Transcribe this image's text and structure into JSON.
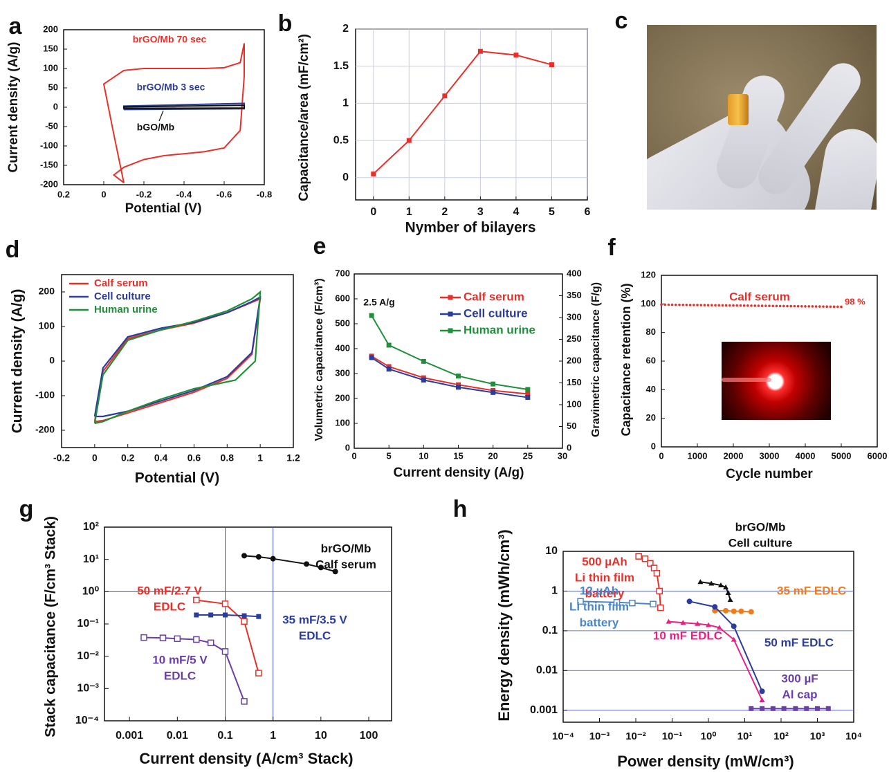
{
  "panels": {
    "a": {
      "label": "a",
      "chart_data": {
        "type": "line",
        "xlabel": "Potential (V)",
        "ylabel": "Current density (A/g)",
        "xlim": [
          0.2,
          -0.8
        ],
        "ylim": [
          -200,
          200
        ],
        "xticks": [
          "0.2",
          "0",
          "-0.2",
          "-0.4",
          "-0.6",
          "-0.8"
        ],
        "yticks": [
          "200",
          "150",
          "100",
          "50",
          "0",
          "-50",
          "-100",
          "-150",
          "-200"
        ],
        "series": [
          {
            "name": "brGO/Mb 70 sec",
            "color": "#e8302a",
            "x": [
              -0.1,
              -0.05,
              0.0,
              -0.1,
              -0.2,
              -0.3,
              -0.4,
              -0.5,
              -0.6,
              -0.68,
              -0.7,
              -0.7,
              -0.68,
              -0.6,
              -0.5,
              -0.4,
              -0.3,
              -0.2,
              -0.1,
              -0.05,
              -0.1
            ],
            "y": [
              -195,
              -70,
              60,
              95,
              100,
              100,
              100,
              100,
              102,
              115,
              165,
              80,
              -60,
              -105,
              -115,
              -120,
              -125,
              -135,
              -155,
              -175,
              -195
            ]
          },
          {
            "name": "brGO/Mb 3 sec",
            "color": "#2a3c9c",
            "x": [
              -0.1,
              -0.7,
              -0.7,
              -0.1,
              -0.1
            ],
            "y": [
              -6,
              -4,
              10,
              3,
              -6
            ]
          },
          {
            "name": "bGO/Mb",
            "color": "#111111",
            "x": [
              -0.1,
              -0.7,
              -0.7,
              -0.1,
              -0.1
            ],
            "y": [
              -3,
              -2,
              5,
              1,
              -3
            ]
          }
        ]
      }
    },
    "b": {
      "label": "b",
      "chart_data": {
        "type": "line",
        "xlabel": "Nymber of bilayers",
        "ylabel": "Capacitance/area (mF/cm²)",
        "xlim": [
          -0.5,
          6
        ],
        "ylim": [
          -0.3,
          2
        ],
        "xticks": [
          "0",
          "1",
          "2",
          "3",
          "4",
          "5",
          "6"
        ],
        "yticks": [
          "0",
          "0.5",
          "1",
          "1.5",
          "2"
        ],
        "grid": true,
        "series": [
          {
            "color": "#e8302a",
            "x": [
              0,
              1,
              2,
              3,
              4,
              5
            ],
            "y": [
              0.05,
              0.5,
              1.1,
              1.7,
              1.65,
              1.52
            ]
          }
        ]
      }
    },
    "c": {
      "label": "c"
    },
    "d": {
      "label": "d",
      "chart_data": {
        "type": "line",
        "xlabel": "Potential (V)",
        "ylabel": "Current density (A/g)",
        "xlim": [
          -0.2,
          1.2
        ],
        "ylim": [
          -250,
          250
        ],
        "xticks": [
          "-0.2",
          "0",
          "0.2",
          "0.4",
          "0.6",
          "0.8",
          "1",
          "1.2"
        ],
        "yticks": [
          "200",
          "100",
          "0",
          "-100",
          "-200"
        ],
        "legend": "top-left",
        "series": [
          {
            "name": "Calf serum",
            "color": "#e8302a",
            "x": [
              0,
              0.05,
              0.2,
              0.4,
              0.6,
              0.8,
              0.95,
              1.0,
              0.95,
              0.8,
              0.6,
              0.4,
              0.2,
              0.05,
              0
            ],
            "y": [
              -175,
              -30,
              65,
              90,
              110,
              140,
              170,
              180,
              20,
              -50,
              -90,
              -120,
              -150,
              -172,
              -175
            ]
          },
          {
            "name": "Cell culture",
            "color": "#2a3c9c",
            "x": [
              0,
              0.05,
              0.2,
              0.4,
              0.6,
              0.8,
              0.95,
              1.0,
              0.95,
              0.8,
              0.6,
              0.4,
              0.2,
              0.05,
              0
            ],
            "y": [
              -160,
              -20,
              70,
              95,
              112,
              140,
              172,
              185,
              25,
              -45,
              -85,
              -115,
              -145,
              -160,
              -160
            ]
          },
          {
            "name": "Human urine",
            "color": "#1f8f3a",
            "x": [
              0,
              0.05,
              0.2,
              0.4,
              0.6,
              0.8,
              0.95,
              1.0,
              0.97,
              0.85,
              0.6,
              0.4,
              0.2,
              0.05,
              0
            ],
            "y": [
              -180,
              -40,
              60,
              90,
              115,
              145,
              180,
              200,
              0,
              -55,
              -80,
              -110,
              -145,
              -175,
              -180
            ]
          }
        ]
      }
    },
    "e": {
      "label": "e",
      "chart_data": {
        "type": "line",
        "xlabel": "Current density (A/g)",
        "ylabel": "Volumetric capacitance (F/cm³)",
        "ylabel2": "Gravimetric capacitance (F/g)",
        "xlim": [
          0,
          30
        ],
        "ylim": [
          0,
          700
        ],
        "ylim2": [
          0,
          400
        ],
        "xticks": [
          "0",
          "5",
          "10",
          "15",
          "20",
          "25",
          "30"
        ],
        "yticks": [
          "0",
          "100",
          "200",
          "300",
          "400",
          "500",
          "600",
          "700"
        ],
        "yticks2": [
          "0",
          "50",
          "100",
          "150",
          "200",
          "250",
          "300",
          "350",
          "400"
        ],
        "legend": "top-right",
        "annotation": "2.5 A/g",
        "series": [
          {
            "name": "Calf serum",
            "color": "#e8302a",
            "x": [
              2.5,
              5,
              10,
              15,
              20,
              25
            ],
            "y": [
              370,
              328,
              283,
              255,
              232,
              218
            ]
          },
          {
            "name": "Cell culture",
            "color": "#2a3c9c",
            "x": [
              2.5,
              5,
              10,
              15,
              20,
              25
            ],
            "y": [
              364,
              318,
              274,
              245,
              224,
              204
            ]
          },
          {
            "name": "Human urine",
            "color": "#1f8f3a",
            "x": [
              2.5,
              5,
              10,
              15,
              20,
              25
            ],
            "y": [
              533,
              414,
              349,
              290,
              258,
              236
            ]
          }
        ]
      }
    },
    "f": {
      "label": "f",
      "chart_data": {
        "type": "scatter",
        "xlabel": "Cycle number",
        "ylabel": "Capacitance retention (%)",
        "xlim": [
          0,
          6000
        ],
        "ylim": [
          0,
          120
        ],
        "xticks": [
          "0",
          "1000",
          "2000",
          "3000",
          "4000",
          "5000",
          "6000"
        ],
        "yticks": [
          "0",
          "20",
          "40",
          "60",
          "80",
          "100",
          "120"
        ],
        "series_label": "Calf serum",
        "end_label": "98 %",
        "series": [
          {
            "color": "#e8302a",
            "x_start": 0,
            "x_end": 5000,
            "y_start": 99.5,
            "y_end": 98
          }
        ]
      }
    },
    "g": {
      "label": "g",
      "chart_data": {
        "type": "line",
        "xscale": "log",
        "yscale": "log",
        "xlabel": "Current density (A/cm³ Stack)",
        "ylabel": "Stack capacitance (F/cm³ Stack)",
        "xlim": [
          0.0003,
          300
        ],
        "ylim": [
          0.0001,
          100
        ],
        "xticks": [
          "0.001",
          "0.01",
          "0.1",
          "1",
          "10",
          "100"
        ],
        "yticks": [
          "10²",
          "10¹",
          "10⁰",
          "10⁻¹",
          "10⁻²",
          "10⁻³",
          "10⁻⁴"
        ],
        "series": [
          {
            "name": "brGO/Mb Calf serum",
            "label1": "brGO/Mb",
            "label2": "Calf serum",
            "color": "#111111",
            "x": [
              0.25,
              0.5,
              1,
              5,
              10,
              20
            ],
            "y": [
              13,
              12,
              10.5,
              7.2,
              5.6,
              4.2
            ]
          },
          {
            "name": "50 mF/2.7 V EDLC",
            "label1": "50 mF/2.7 V",
            "label2": "EDLC",
            "color": "#e8302a",
            "x": [
              0.025,
              0.1,
              0.25,
              0.5
            ],
            "y": [
              0.55,
              0.42,
              0.12,
              0.003
            ]
          },
          {
            "name": "35 mF/3.5 V EDLC",
            "label1": "35 mF/3.5 V",
            "label2": "EDLC",
            "color": "#2a3c9c",
            "x": [
              0.025,
              0.05,
              0.1,
              0.25,
              0.5
            ],
            "y": [
              0.19,
              0.19,
              0.19,
              0.18,
              0.17
            ]
          },
          {
            "name": "10 mF/5 V EDLC",
            "label1": "10 mF/5 V",
            "label2": "EDLC",
            "color": "#6a3fa8",
            "x": [
              0.002,
              0.005,
              0.01,
              0.025,
              0.05,
              0.1,
              0.25
            ],
            "y": [
              0.038,
              0.037,
              0.035,
              0.033,
              0.026,
              0.014,
              0.0004
            ]
          }
        ]
      }
    },
    "h": {
      "label": "h",
      "chart_data": {
        "type": "line",
        "xscale": "log",
        "yscale": "log",
        "xlabel": "Power density (mW/cm³)",
        "ylabel": "Energy density (mWh/cm³)",
        "xlim": [
          0.0001,
          10000
        ],
        "ylim": [
          0.0005,
          10
        ],
        "xticks": [
          "10⁻⁴",
          "10⁻³",
          "10⁻²",
          "10⁻¹",
          "10⁰",
          "10¹",
          "10²",
          "10³",
          "10⁴"
        ],
        "yticks": [
          "10",
          "1",
          "0.1",
          "0.01",
          "0.001"
        ],
        "series": [
          {
            "name": "500 µAh Li thin film battery",
            "label1": "500 µAh",
            "label2": "Li thin film",
            "label3": "battery",
            "color": "#e8302a",
            "x": [
              0.012,
              0.018,
              0.025,
              0.032,
              0.038,
              0.045,
              0.048
            ],
            "y": [
              7.5,
              6.5,
              5,
              3.8,
              2.8,
              1,
              0.38
            ]
          },
          {
            "name": "brGO/Mb Cell culture",
            "label1": "brGO/Mb",
            "label2": "Cell culture",
            "color": "#111111",
            "x": [
              0.6,
              1.2,
              2.2,
              3,
              3.5,
              4
            ],
            "y": [
              1.7,
              1.55,
              1.4,
              1.25,
              0.9,
              0.6
            ]
          },
          {
            "name": "12 µAh Li thin film battery",
            "label1": "12 µAh",
            "label2": "Li thin film",
            "label3": "battery",
            "color": "#4a86c8",
            "x": [
              0.0003,
              0.003,
              0.008,
              0.03
            ],
            "y": [
              0.55,
              0.52,
              0.5,
              0.47
            ]
          },
          {
            "name": "35 mF EDLC",
            "color": "#f07b1c",
            "x": [
              1.5,
              3,
              5,
              8,
              15
            ],
            "y": [
              0.32,
              0.32,
              0.31,
              0.31,
              0.3
            ]
          },
          {
            "name": "10 mF EDLC",
            "color": "#e52283",
            "x": [
              0.08,
              0.2,
              0.5,
              1,
              2,
              5,
              30
            ],
            "y": [
              0.17,
              0.16,
              0.15,
              0.14,
              0.12,
              0.06,
              0.0018
            ]
          },
          {
            "name": "50 mF EDLC",
            "color": "#2a3c9c",
            "x": [
              0.3,
              1.5,
              5,
              30
            ],
            "y": [
              0.55,
              0.4,
              0.13,
              0.003
            ]
          },
          {
            "name": "300 µF Al cap",
            "label1": "300 µF",
            "label2": "Al cap",
            "color": "#6a3fa8",
            "x": [
              15,
              30,
              60,
              120,
              250,
              500,
              1000,
              2000
            ],
            "y": [
              0.0011,
              0.0011,
              0.0011,
              0.0011,
              0.0011,
              0.0011,
              0.0011,
              0.0011
            ]
          }
        ]
      }
    }
  }
}
